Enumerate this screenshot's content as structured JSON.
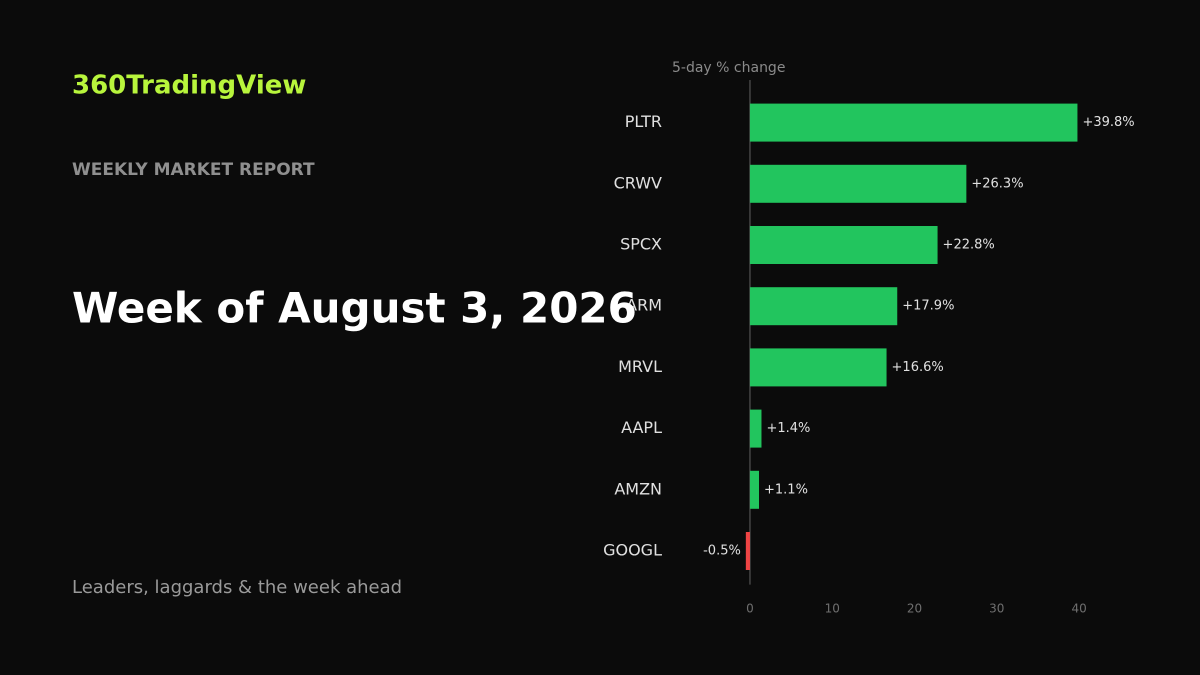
{
  "brand": "360TradingView",
  "report_label": "WEEKLY MARKET REPORT",
  "headline": "Week of August 3, 2026",
  "tagline": "Leaders, laggards & the week ahead",
  "chart_data": {
    "type": "barh",
    "title": "5-day % change",
    "categories": [
      "PLTR",
      "CRWV",
      "SPCX",
      "ARM",
      "MRVL",
      "AAPL",
      "AMZN",
      "GOOGL"
    ],
    "values": [
      39.8,
      26.3,
      22.8,
      17.9,
      16.6,
      1.4,
      1.1,
      -0.5
    ],
    "value_labels": [
      "+39.8%",
      "+26.3%",
      "+22.8%",
      "+17.9%",
      "+16.6%",
      "+1.4%",
      "+1.1%",
      "-0.5%"
    ],
    "positive_color": "#22c55e",
    "negative_color": "#ef4444",
    "xlim": [
      -2,
      44
    ],
    "xticks": [
      0,
      10,
      20,
      30,
      40
    ]
  }
}
